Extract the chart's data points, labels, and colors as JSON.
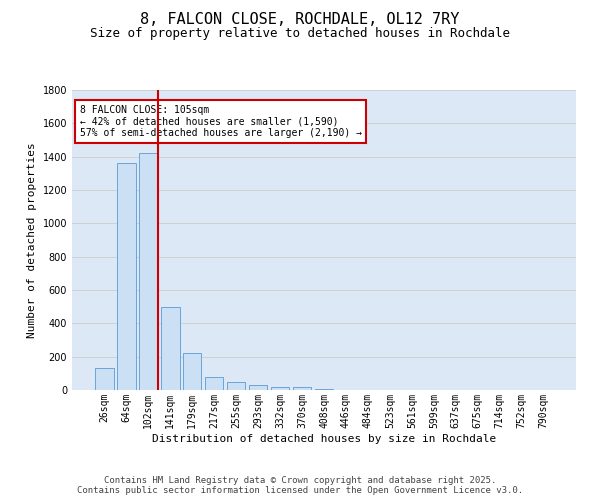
{
  "title_line1": "8, FALCON CLOSE, ROCHDALE, OL12 7RY",
  "title_line2": "Size of property relative to detached houses in Rochdale",
  "xlabel": "Distribution of detached houses by size in Rochdale",
  "ylabel": "Number of detached properties",
  "categories": [
    "26sqm",
    "64sqm",
    "102sqm",
    "141sqm",
    "179sqm",
    "217sqm",
    "255sqm",
    "293sqm",
    "332sqm",
    "370sqm",
    "408sqm",
    "446sqm",
    "484sqm",
    "523sqm",
    "561sqm",
    "599sqm",
    "637sqm",
    "675sqm",
    "714sqm",
    "752sqm",
    "790sqm"
  ],
  "values": [
    130,
    1360,
    1420,
    500,
    225,
    80,
    48,
    30,
    20,
    20,
    5,
    3,
    2,
    1,
    0,
    0,
    0,
    0,
    0,
    0,
    0
  ],
  "bar_color": "#cce0f5",
  "bar_edge_color": "#5b9bd5",
  "vline_x_index": 2,
  "vline_color": "#cc0000",
  "annotation_text_line1": "8 FALCON CLOSE: 105sqm",
  "annotation_text_line2": "← 42% of detached houses are smaller (1,590)",
  "annotation_text_line3": "57% of semi-detached houses are larger (2,190) →",
  "annotation_box_color": "#cc0000",
  "ylim": [
    0,
    1800
  ],
  "yticks": [
    0,
    200,
    400,
    600,
    800,
    1000,
    1200,
    1400,
    1600,
    1800
  ],
  "grid_color": "#cccccc",
  "bg_color": "#dce8f5",
  "footer_line1": "Contains HM Land Registry data © Crown copyright and database right 2025.",
  "footer_line2": "Contains public sector information licensed under the Open Government Licence v3.0.",
  "title_fontsize": 11,
  "subtitle_fontsize": 9,
  "axis_label_fontsize": 8,
  "tick_fontsize": 7,
  "annotation_fontsize": 7,
  "footer_fontsize": 6.5
}
